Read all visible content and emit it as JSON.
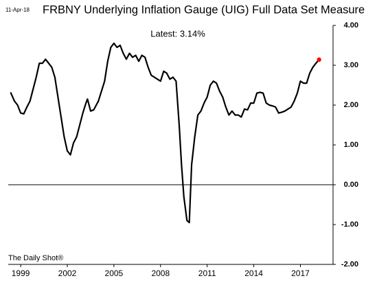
{
  "chart_data": {
    "type": "line",
    "title": "FRBNY Underlying Inflation Gauge (UIG) Full Data Set Measure",
    "date": "11-Apr-18",
    "annotation": "Latest:  3.14%",
    "source": "The Daily Shot®",
    "x": [
      1998.35,
      1998.6,
      1998.8,
      1999.0,
      1999.2,
      1999.4,
      1999.6,
      1999.8,
      2000.0,
      2000.2,
      2000.4,
      2000.6,
      2000.8,
      2001.0,
      2001.2,
      2001.4,
      2001.6,
      2001.8,
      2002.0,
      2002.2,
      2002.4,
      2002.6,
      2002.8,
      2003.0,
      2003.2,
      2003.3,
      2003.5,
      2003.7,
      2004.0,
      2004.2,
      2004.4,
      2004.6,
      2004.8,
      2005.0,
      2005.2,
      2005.4,
      2005.6,
      2005.8,
      2006.0,
      2006.2,
      2006.4,
      2006.6,
      2006.8,
      2007.0,
      2007.2,
      2007.4,
      2007.6,
      2007.8,
      2008.0,
      2008.2,
      2008.4,
      2008.6,
      2008.8,
      2009.0,
      2009.2,
      2009.35,
      2009.5,
      2009.7,
      2009.85,
      2010.0,
      2010.2,
      2010.4,
      2010.6,
      2010.8,
      2011.0,
      2011.2,
      2011.4,
      2011.6,
      2011.8,
      2012.0,
      2012.2,
      2012.4,
      2012.6,
      2012.8,
      2013.0,
      2013.2,
      2013.4,
      2013.6,
      2013.8,
      2014.0,
      2014.2,
      2014.4,
      2014.6,
      2014.8,
      2015.0,
      2015.2,
      2015.4,
      2015.6,
      2015.8,
      2016.0,
      2016.2,
      2016.4,
      2016.6,
      2016.8,
      2017.0,
      2017.2,
      2017.4,
      2017.6,
      2017.8,
      2018.0,
      2018.2
    ],
    "series": [
      {
        "name": "UIG Full Data Set Measure",
        "color": "#000000",
        "values": [
          2.32,
          2.1,
          2.0,
          1.8,
          1.78,
          1.95,
          2.1,
          2.4,
          2.7,
          3.05,
          3.05,
          3.15,
          3.05,
          2.95,
          2.7,
          2.2,
          1.7,
          1.2,
          0.85,
          0.75,
          1.05,
          1.2,
          1.5,
          1.8,
          2.05,
          2.15,
          1.85,
          1.88,
          2.1,
          2.35,
          2.6,
          3.1,
          3.45,
          3.55,
          3.45,
          3.5,
          3.3,
          3.15,
          3.3,
          3.2,
          3.25,
          3.1,
          3.25,
          3.2,
          2.95,
          2.75,
          2.7,
          2.65,
          2.6,
          2.85,
          2.8,
          2.65,
          2.7,
          2.6,
          1.5,
          0.5,
          -0.3,
          -0.9,
          -0.95,
          0.5,
          1.2,
          1.75,
          1.85,
          2.05,
          2.2,
          2.5,
          2.6,
          2.55,
          2.35,
          2.2,
          1.95,
          1.75,
          1.85,
          1.75,
          1.75,
          1.7,
          1.9,
          1.88,
          2.05,
          2.05,
          2.3,
          2.32,
          2.3,
          2.05,
          2.0,
          1.98,
          1.95,
          1.8,
          1.82,
          1.85,
          1.9,
          1.95,
          2.1,
          2.3,
          2.6,
          2.55,
          2.55,
          2.8,
          2.95,
          3.05,
          3.14
        ]
      }
    ],
    "latest_marker_color": "#ff0000",
    "xlim": [
      1998.2,
      2019.1
    ],
    "xticks": [
      1999,
      2002,
      2005,
      2008,
      2011,
      2014,
      2017
    ],
    "ylim": [
      -2,
      4
    ],
    "yticks": [
      {
        "value": 4,
        "label": "4.00"
      },
      {
        "value": 3,
        "label": "3.00"
      },
      {
        "value": 2,
        "label": "2.00"
      },
      {
        "value": 1,
        "label": "1.00"
      },
      {
        "value": 0,
        "label": "0.00"
      },
      {
        "value": -1,
        "label": "-1.00"
      },
      {
        "value": -2,
        "label": "-2.00"
      }
    ],
    "zero_line": true,
    "y_axis_side": "right"
  }
}
